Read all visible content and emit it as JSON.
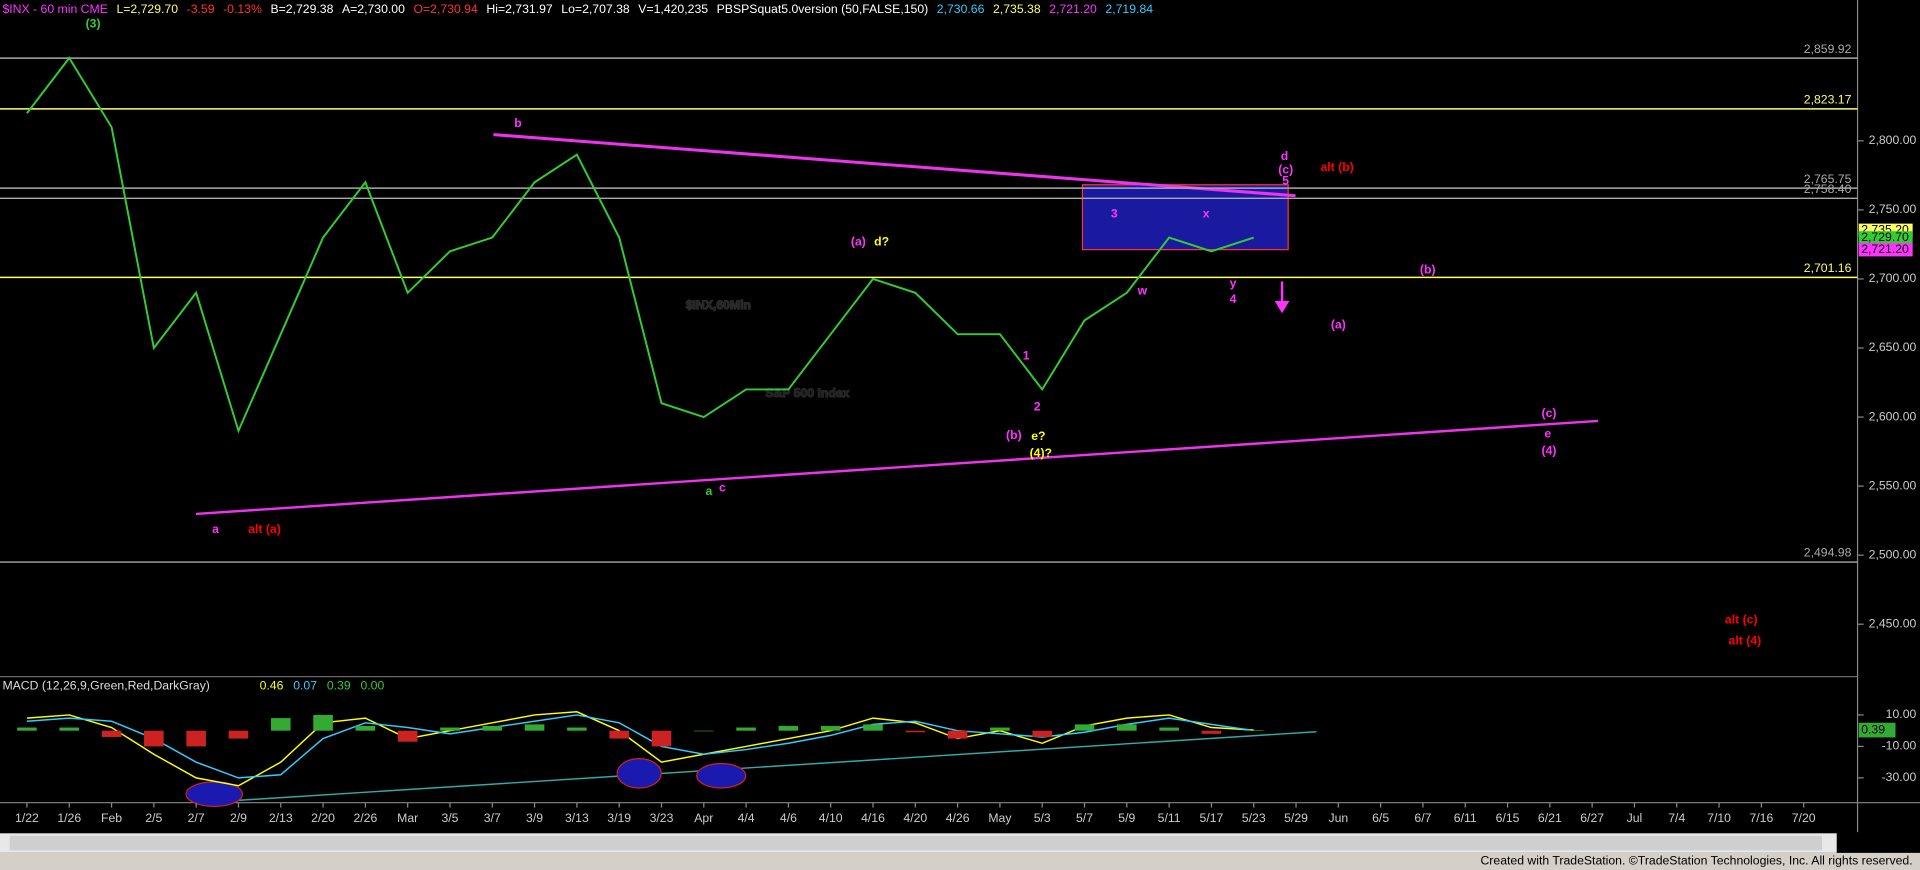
{
  "chart_data": [
    {
      "type": "line",
      "header": [
        {
          "text": "$INX - 60 min CME",
          "color": "#ff33ff"
        },
        {
          "text": "L=2,729.70",
          "color": "#ffff66"
        },
        {
          "text": "-3.59",
          "color": "#ff3333"
        },
        {
          "text": "-0.13%",
          "color": "#ff3333"
        },
        {
          "text": "B=2,729.38",
          "color": "#ffffff"
        },
        {
          "text": "A=2,730.00",
          "color": "#ffffff"
        },
        {
          "text": "O=2,730.94",
          "color": "#ff3333"
        },
        {
          "text": "Hi=2,731.97",
          "color": "#ffffff"
        },
        {
          "text": "Lo=2,707.38",
          "color": "#ffffff"
        },
        {
          "text": "V=1,420,235",
          "color": "#ffffff"
        },
        {
          "text": "PBSPSquat5.0version (50,FALSE,150)",
          "color": "#ffffff"
        },
        {
          "text": "2,730.66",
          "color": "#33ccff"
        },
        {
          "text": "2,735.38",
          "color": "#ffff66"
        },
        {
          "text": "2,721.20",
          "color": "#ff33ff"
        },
        {
          "text": "2,719.84",
          "color": "#33ccff"
        }
      ],
      "watermark": [
        "$INX,60Min",
        "S&P 500 Index"
      ],
      "categories": [
        "1/22",
        "1/26",
        "Feb",
        "2/5",
        "2/7",
        "2/9",
        "2/13",
        "2/20",
        "2/26",
        "Mar",
        "3/5",
        "3/7",
        "3/9",
        "3/13",
        "3/19",
        "3/23",
        "Apr",
        "4/4",
        "4/6",
        "4/10",
        "4/16",
        "4/20",
        "4/26",
        "May",
        "5/3",
        "5/7",
        "5/9",
        "5/11",
        "5/17",
        "5/23",
        "5/29",
        "Jun",
        "6/5",
        "6/7",
        "6/11",
        "6/15",
        "6/21",
        "6/27",
        "Jul",
        "7/4",
        "7/10",
        "7/16",
        "7/20"
      ],
      "series": [
        {
          "color": "#33cc33",
          "values": [
            2820,
            2860,
            2810,
            2650,
            2690,
            2590,
            2660,
            2730,
            2770,
            2690,
            2720,
            2730,
            2770,
            2790,
            2730,
            2610,
            2600,
            2620,
            2620,
            2660,
            2700,
            2690,
            2660,
            2660,
            2620,
            2670,
            2690,
            2730,
            2720,
            2730,
            null,
            null,
            null,
            null,
            null,
            null,
            null,
            null,
            null,
            null,
            null,
            null,
            null
          ]
        }
      ],
      "ylim": [
        2412,
        2902
      ],
      "yticks": [
        {
          "value": 2450,
          "label": "2,450.00"
        },
        {
          "value": 2500,
          "label": "2,500.00"
        },
        {
          "value": 2550,
          "label": "2,550.00"
        },
        {
          "value": 2600,
          "label": "2,600.00"
        },
        {
          "value": 2650,
          "label": "2,650.00"
        },
        {
          "value": 2700,
          "label": "2,700.00"
        },
        {
          "value": 2750,
          "label": "2,750.00"
        },
        {
          "value": 2800,
          "label": "2,800.00"
        }
      ],
      "levels": [
        {
          "value": 2859.92,
          "label": "2,859.92",
          "color": "#aaaaaa"
        },
        {
          "value": 2823.17,
          "label": "2,823.17",
          "color": "#ffff66"
        },
        {
          "value": 2765.75,
          "label": "2,765.75",
          "color": "#aaaaaa"
        },
        {
          "value": 2758.4,
          "label": "2,758.40",
          "color": "#aaaaaa"
        },
        {
          "value": 2701.16,
          "label": "2,701.16",
          "color": "#ffff66"
        },
        {
          "value": 2494.98,
          "label": "2,494.98",
          "color": "#aaaaaa"
        }
      ],
      "price_tags": [
        {
          "value": 2735.2,
          "label": "2,735.20",
          "color": "#ffff66"
        },
        {
          "value": 2729.7,
          "label": "2,729.70",
          "color": "#33cc33"
        },
        {
          "value": 2721.2,
          "label": "2,721.20",
          "color": "#ff33ff"
        }
      ],
      "annotations": [
        {
          "text": "(3)",
          "color": "#33cc33"
        },
        {
          "text": "b",
          "color": "#ff33ff"
        },
        {
          "text": "alt (b)",
          "color": "#ff0000"
        },
        {
          "text": "d",
          "color": "#ff33ff"
        },
        {
          "text": "(c)",
          "color": "#ff33ff"
        },
        {
          "text": "5",
          "color": "#ff33ff"
        },
        {
          "text": "3",
          "color": "#ff33ff"
        },
        {
          "text": "x",
          "color": "#ff33ff"
        },
        {
          "text": "w",
          "color": "#ff33ff"
        },
        {
          "text": "y",
          "color": "#ff33ff"
        },
        {
          "text": "4",
          "color": "#ff33ff"
        },
        {
          "text": "(a)",
          "color": "#ff33ff"
        },
        {
          "text": "d?",
          "color": "#ffff00"
        },
        {
          "text": "(b)",
          "color": "#ff33ff"
        },
        {
          "text": "(a)",
          "color": "#ff33ff"
        },
        {
          "text": "1",
          "color": "#ff33ff"
        },
        {
          "text": "2",
          "color": "#ff33ff"
        },
        {
          "text": "(b)",
          "color": "#ff33ff"
        },
        {
          "text": "e?",
          "color": "#ffff00"
        },
        {
          "text": "(4)?",
          "color": "#ffff00"
        },
        {
          "text": "a",
          "color": "#33cc33"
        },
        {
          "text": "c",
          "color": "#ff33ff"
        },
        {
          "text": "a",
          "color": "#ff33ff"
        },
        {
          "text": "alt (a)",
          "color": "#ff0000"
        },
        {
          "text": "(c)",
          "color": "#ff33ff"
        },
        {
          "text": "e",
          "color": "#ff33ff"
        },
        {
          "text": "(4)",
          "color": "#ff33ff"
        },
        {
          "text": "alt (c)",
          "color": "#ff0000"
        },
        {
          "text": "alt (4)",
          "color": "#ff0000"
        }
      ]
    },
    {
      "type": "macd",
      "title": "MACD (12,26,9,Green,Red,DarkGray)",
      "legend_values": [
        {
          "value": 0.46,
          "color": "#ffff00"
        },
        {
          "value": 0.07,
          "color": "#33ccff"
        },
        {
          "value": 0.39,
          "color": "#33cc33"
        },
        {
          "value": 0,
          "label": "0.00",
          "color": "#33cc33"
        }
      ],
      "series": [
        {
          "color": "#ffff00",
          "values": [
            8,
            10,
            2,
            -15,
            -30,
            -35,
            -20,
            5,
            8,
            -5,
            0,
            5,
            10,
            12,
            0,
            -20,
            -15,
            -10,
            -5,
            0,
            8,
            5,
            -5,
            0,
            -8,
            3,
            8,
            10,
            2,
            0.46,
            null,
            null,
            null,
            null,
            null,
            null,
            null,
            null,
            null,
            null,
            null,
            null,
            null
          ]
        },
        {
          "color": "#33ccff",
          "values": [
            6,
            8,
            6,
            -5,
            -20,
            -30,
            -28,
            -5,
            5,
            2,
            -2,
            2,
            6,
            10,
            5,
            -10,
            -15,
            -12,
            -8,
            -3,
            4,
            6,
            0,
            -2,
            -4,
            -1,
            4,
            8,
            4,
            0.07,
            null,
            null,
            null,
            null,
            null,
            null,
            null,
            null,
            null,
            null,
            null,
            null,
            null
          ]
        },
        {
          "type": "histogram",
          "up_color": "#33aa33",
          "down_color": "#cc2222",
          "values": [
            2,
            2,
            -4,
            -10,
            -10,
            -5,
            8,
            10,
            3,
            -7,
            2,
            3,
            4,
            2,
            -5,
            -10,
            0,
            2,
            3,
            3,
            4,
            -1,
            -5,
            2,
            -4,
            4,
            4,
            2,
            -2,
            0.39,
            null,
            null,
            null,
            null,
            null,
            null,
            null,
            null,
            null,
            null,
            null,
            null,
            null
          ]
        }
      ],
      "ylim": [
        -45,
        32
      ],
      "yticks": [
        {
          "value": -30,
          "label": "-30.00"
        },
        {
          "value": -10,
          "label": "-10.00"
        },
        {
          "value": 10,
          "label": "10.00"
        }
      ]
    }
  ],
  "footer": "Created with TradeStation. ©TradeStation Technologies, Inc. All rights reserved."
}
